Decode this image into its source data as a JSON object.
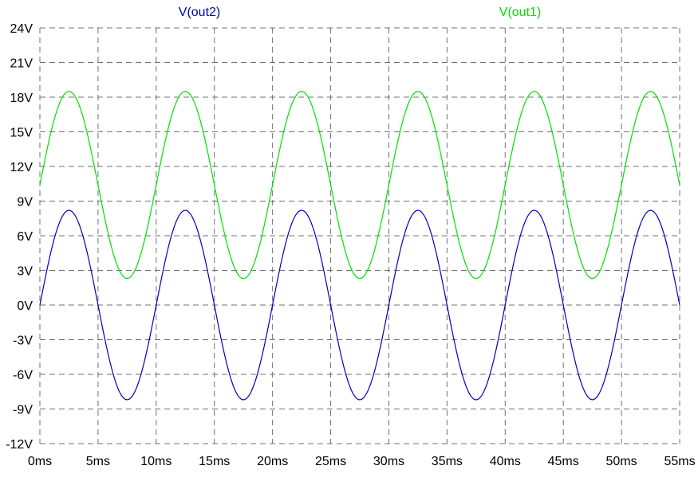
{
  "chart_data": {
    "type": "line",
    "xlim": [
      0,
      55
    ],
    "ylim": [
      -12,
      24
    ],
    "x_unit": "ms",
    "y_unit": "V",
    "x_ticks": [
      "0ms",
      "5ms",
      "10ms",
      "15ms",
      "20ms",
      "25ms",
      "30ms",
      "35ms",
      "40ms",
      "45ms",
      "50ms",
      "55ms"
    ],
    "y_ticks": [
      "24V",
      "21V",
      "18V",
      "15V",
      "12V",
      "9V",
      "6V",
      "3V",
      "0V",
      "-3V",
      "-6V",
      "-9V",
      "-12V"
    ],
    "grid": true,
    "grid_style": "dashed",
    "legend_placement": "top",
    "colors": {
      "V(out2)": "#0000c0",
      "V(out1)": "#00e000",
      "grid": "#707070",
      "axis": "#000000"
    },
    "series": [
      {
        "name": "V(out2)",
        "color": "#0000c0",
        "x": [
          0,
          1.25,
          2.5,
          3.75,
          5,
          6.25,
          7.5,
          8.75,
          10,
          11.25,
          12.5,
          13.75,
          15,
          16.25,
          17.5,
          18.75,
          20,
          21.25,
          22.5,
          23.75,
          25,
          26.25,
          27.5,
          28.75,
          30,
          31.25,
          32.5,
          33.75,
          35,
          36.25,
          37.5,
          38.75,
          40,
          41.25,
          42.5,
          43.75,
          45,
          46.25,
          47.5,
          48.75,
          50,
          51.25,
          52.5,
          53.75,
          55
        ],
        "values": [
          0,
          5.8,
          8.2,
          5.8,
          0,
          -5.8,
          -8.2,
          -5.8,
          0,
          5.8,
          8.2,
          5.8,
          0,
          -5.8,
          -8.2,
          -5.8,
          0,
          5.8,
          8.2,
          5.8,
          0,
          -5.8,
          -8.2,
          -5.8,
          0,
          5.8,
          8.2,
          5.8,
          0,
          -5.8,
          -8.2,
          -5.8,
          0,
          5.8,
          8.2,
          5.8,
          0,
          -5.8,
          -8.2,
          -5.8,
          0,
          5.8,
          8.2,
          5.8,
          0
        ]
      },
      {
        "name": "V(out1)",
        "color": "#00e000",
        "x": [
          0,
          1.25,
          2.5,
          3.75,
          5,
          6.25,
          7.5,
          8.75,
          10,
          11.25,
          12.5,
          13.75,
          15,
          16.25,
          17.5,
          18.75,
          20,
          21.25,
          22.5,
          23.75,
          25,
          26.25,
          27.5,
          28.75,
          30,
          31.25,
          32.5,
          33.75,
          35,
          36.25,
          37.5,
          38.75,
          40,
          41.25,
          42.5,
          43.75,
          45,
          46.25,
          47.5,
          48.75,
          50,
          51.25,
          52.5,
          53.75,
          55
        ],
        "values": [
          10.4,
          16.1,
          18.5,
          16.1,
          10.4,
          4.7,
          2.3,
          4.7,
          10.4,
          16.1,
          18.5,
          16.1,
          10.4,
          4.7,
          2.3,
          4.7,
          10.4,
          16.1,
          18.5,
          16.1,
          10.4,
          4.7,
          2.3,
          4.7,
          10.4,
          16.1,
          18.5,
          16.1,
          10.4,
          4.7,
          2.3,
          4.7,
          10.4,
          16.1,
          18.5,
          16.1,
          10.4,
          4.7,
          2.3,
          4.7,
          10.4,
          16.1,
          18.5,
          16.1,
          10.4
        ]
      }
    ]
  }
}
